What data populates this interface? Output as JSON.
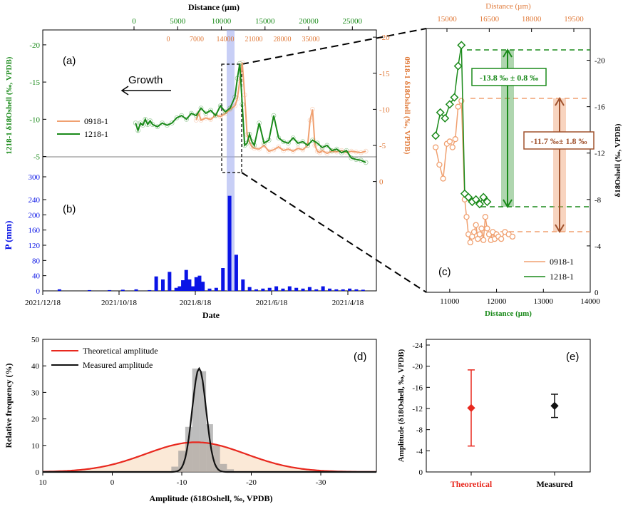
{
  "chart_data": [
    {
      "panel": "(a)",
      "type": "line",
      "annotation": "Growth",
      "xlabel_top": "Distance (µm)",
      "x_top_ticks": [
        "0",
        "5000",
        "10000",
        "15000",
        "20000",
        "25000"
      ],
      "x_top2_ticks": [
        "0",
        "7000",
        "14000",
        "21000",
        "28000",
        "35000"
      ],
      "ylabel_left": "1218-1 δ18Oshell (‰, VPDB)",
      "ylabel_right": "0918-1 δ18Oshell (‰, VPDB)",
      "y_left_ticks": [
        "-20",
        "-15",
        "-10",
        "-5"
      ],
      "y_right_ticks": [
        "-20",
        "-15",
        "-10",
        "-5",
        "0"
      ],
      "y_left_range": [
        -4,
        -22
      ],
      "y_right_range": [
        3,
        -21
      ],
      "series": [
        {
          "name": "0918-1",
          "color": "#f0a070",
          "x": [
            28,
            29,
            30,
            32,
            34,
            36,
            38,
            40,
            42,
            44,
            45,
            46,
            47,
            48,
            49,
            50,
            51,
            52,
            54,
            56,
            58,
            60,
            62,
            64,
            66,
            68,
            70,
            72,
            74,
            75,
            76,
            77,
            78,
            79,
            80,
            82,
            84,
            86,
            88,
            90,
            92,
            94,
            96,
            98
          ],
          "y": [
            -8.5,
            -9.5,
            -8.5,
            -8.8,
            -8.6,
            -9.2,
            -9.0,
            -9.4,
            -10.0,
            -10.5,
            -11.5,
            -14.0,
            -16.5,
            -12.0,
            -6.5,
            -5.5,
            -4.8,
            -4.6,
            -4.5,
            -5.0,
            -4.2,
            -4.4,
            -4.8,
            -4.3,
            -4.5,
            -4.2,
            -4.6,
            -4.4,
            -5.0,
            -8.5,
            -10.0,
            -5.0,
            -4.2,
            -4.0,
            -4.3,
            -3.9,
            -4.2,
            -4.1,
            -4.3,
            -4.0,
            -4.2,
            -4.1,
            -4.0,
            -4.2
          ]
        },
        {
          "name": "1218-1",
          "color": "#1a8a1a",
          "x": [
            3,
            4,
            5,
            6,
            7,
            8,
            9,
            10,
            12,
            14,
            16,
            18,
            20,
            22,
            24,
            26,
            28,
            30,
            32,
            34,
            36,
            38,
            40,
            42,
            44,
            45,
            46,
            47,
            48,
            49,
            50,
            51,
            52,
            54,
            56,
            58,
            60,
            62,
            64,
            66,
            68,
            70,
            72,
            74,
            76,
            78,
            80,
            82,
            84,
            86,
            88,
            90,
            92,
            94,
            96,
            98
          ],
          "y": [
            -9.5,
            -8.5,
            -9.5,
            -9.2,
            -10.0,
            -9.3,
            -9.8,
            -9.3,
            -9.0,
            -9.5,
            -9.2,
            -9.5,
            -10.2,
            -10.5,
            -10.0,
            -10.8,
            -10.5,
            -11.5,
            -10.8,
            -11.2,
            -10.5,
            -11.8,
            -11.0,
            -11.5,
            -13.0,
            -15.5,
            -17.5,
            -12.0,
            -6.5,
            -6.8,
            -8.0,
            -7.0,
            -6.5,
            -9.5,
            -6.8,
            -7.2,
            -10.5,
            -7.5,
            -7.0,
            -6.8,
            -7.5,
            -6.8,
            -7.0,
            -6.5,
            -7.2,
            -6.8,
            -6.2,
            -6.5,
            -5.8,
            -6.0,
            -5.5,
            -5.8,
            -4.8,
            -4.6,
            -4.5,
            -4.2
          ]
        }
      ]
    },
    {
      "panel": "(b)",
      "type": "bar",
      "xlabel": "Date",
      "x_ticks": [
        "2021/12/18",
        "2021/10/18",
        "2021/8/18",
        "2021/6/18",
        "2021/4/18"
      ],
      "ylabel": "P (mm)",
      "y_ticks": [
        "0",
        "40",
        "80",
        "120",
        "160",
        "200",
        "240",
        "300"
      ],
      "ylim": [
        0,
        300
      ],
      "color": "#0a14e6",
      "bars_x": [
        5,
        14,
        20,
        24,
        28,
        32,
        34,
        36,
        38,
        40,
        41,
        42,
        43,
        44,
        45,
        46,
        47,
        48,
        50,
        52,
        54,
        56,
        58,
        60,
        62,
        64,
        66,
        68,
        70,
        72,
        74,
        76,
        78,
        80,
        82,
        84,
        86,
        88,
        90,
        92,
        94,
        96
      ],
      "bars_y": [
        4,
        2,
        2,
        3,
        4,
        2,
        38,
        30,
        50,
        8,
        12,
        28,
        55,
        30,
        12,
        36,
        40,
        24,
        6,
        8,
        60,
        250,
        95,
        30,
        10,
        4,
        6,
        8,
        12,
        6,
        12,
        8,
        6,
        10,
        4,
        12,
        6,
        4,
        4,
        6,
        4,
        3
      ]
    },
    {
      "panel": "(c)",
      "type": "line",
      "xlabel": "Distance (µm)",
      "x_ticks": [
        "11000",
        "12000",
        "13000",
        "14000"
      ],
      "xlabel_top": "Distance (µm)",
      "x_top_ticks": [
        "15000",
        "16500",
        "18000",
        "19500"
      ],
      "ylabel": "δ18Oshell (‰, VPDB)",
      "y_ticks": [
        "-20",
        "-16",
        "-12",
        "-8",
        "-4",
        "0"
      ],
      "ylim": [
        0,
        -22
      ],
      "annotations": [
        "-13.8 ‰ ± 0.8 ‰",
        "-11.7 ‰± 1.8 ‰"
      ],
      "series": [
        {
          "name": "0918-1",
          "color": "#f0a070",
          "x": [
            10700,
            10780,
            10860,
            10940,
            11000,
            11060,
            11120,
            11180,
            11250,
            11320,
            11360,
            11400,
            11440,
            11480,
            11520,
            11560,
            11600,
            11640,
            11680,
            11720,
            11760,
            11800,
            11840,
            11880,
            11920,
            11960,
            12000,
            12040,
            12100,
            12180,
            12260,
            12340
          ],
          "y": [
            -12.5,
            -11.0,
            -9.8,
            -12.8,
            -13.0,
            -12.5,
            -13.2,
            -16.0,
            -16.5,
            -8.0,
            -6.5,
            -5.0,
            -4.3,
            -4.8,
            -5.2,
            -5.8,
            -4.6,
            -5.0,
            -5.5,
            -4.5,
            -6.5,
            -5.5,
            -5.0,
            -4.5,
            -5.2,
            -4.6,
            -5.0,
            -4.8,
            -4.6,
            -5.2,
            -5.0,
            -4.8
          ]
        },
        {
          "name": "1218-1",
          "color": "#1a8a1a",
          "x": [
            10700,
            10800,
            10900,
            11000,
            11100,
            11180,
            11250,
            11320,
            11400,
            11480,
            11560,
            11640,
            11720,
            11800
          ],
          "y": [
            -13.5,
            -15.5,
            -15.0,
            -16.2,
            -16.8,
            -19.5,
            -21.3,
            -8.5,
            -8.2,
            -7.8,
            -8.0,
            -7.6,
            -8.2,
            -7.8
          ]
        }
      ]
    },
    {
      "panel": "(d)",
      "type": "histogram",
      "xlabel": "Amplitude (δ18Oshell, ‰, VPDB)",
      "x_ticks": [
        "10",
        "0",
        "-10",
        "-20",
        "-30"
      ],
      "xlim": [
        10,
        -38
      ],
      "ylabel": "Relative frequency (%)",
      "y_ticks": [
        "0",
        "10",
        "20",
        "30",
        "40",
        "50"
      ],
      "ylim": [
        0,
        50
      ],
      "series": [
        {
          "name": "Theoretical amplitude",
          "color": "#e8281e",
          "mean": -12.0,
          "sd": 7.2,
          "peak": 11.2
        },
        {
          "name": "Measured amplitude",
          "color": "#111111",
          "mean": -12.5,
          "sd": 1.0,
          "peak": 39.0
        }
      ],
      "bars_x": [
        -9,
        -10,
        -11,
        -12,
        -13,
        -14,
        -15,
        -16,
        -17
      ],
      "bars_y": [
        2,
        8,
        17,
        39,
        38,
        18,
        10,
        3,
        1
      ]
    },
    {
      "panel": "(e)",
      "type": "scatter",
      "categories": [
        "Theoretical",
        "Measured"
      ],
      "category_colors": [
        "#e8281e",
        "#111111"
      ],
      "values": [
        -12.1,
        -12.5
      ],
      "errors": [
        7.2,
        2.2
      ],
      "ylabel": "Amplitude (δ18Oshell, ‰, VPDB)",
      "y_ticks": [
        "0",
        "-4",
        "-8",
        "-12",
        "-16",
        "-20",
        "-24"
      ],
      "ylim": [
        0,
        -24
      ]
    }
  ]
}
